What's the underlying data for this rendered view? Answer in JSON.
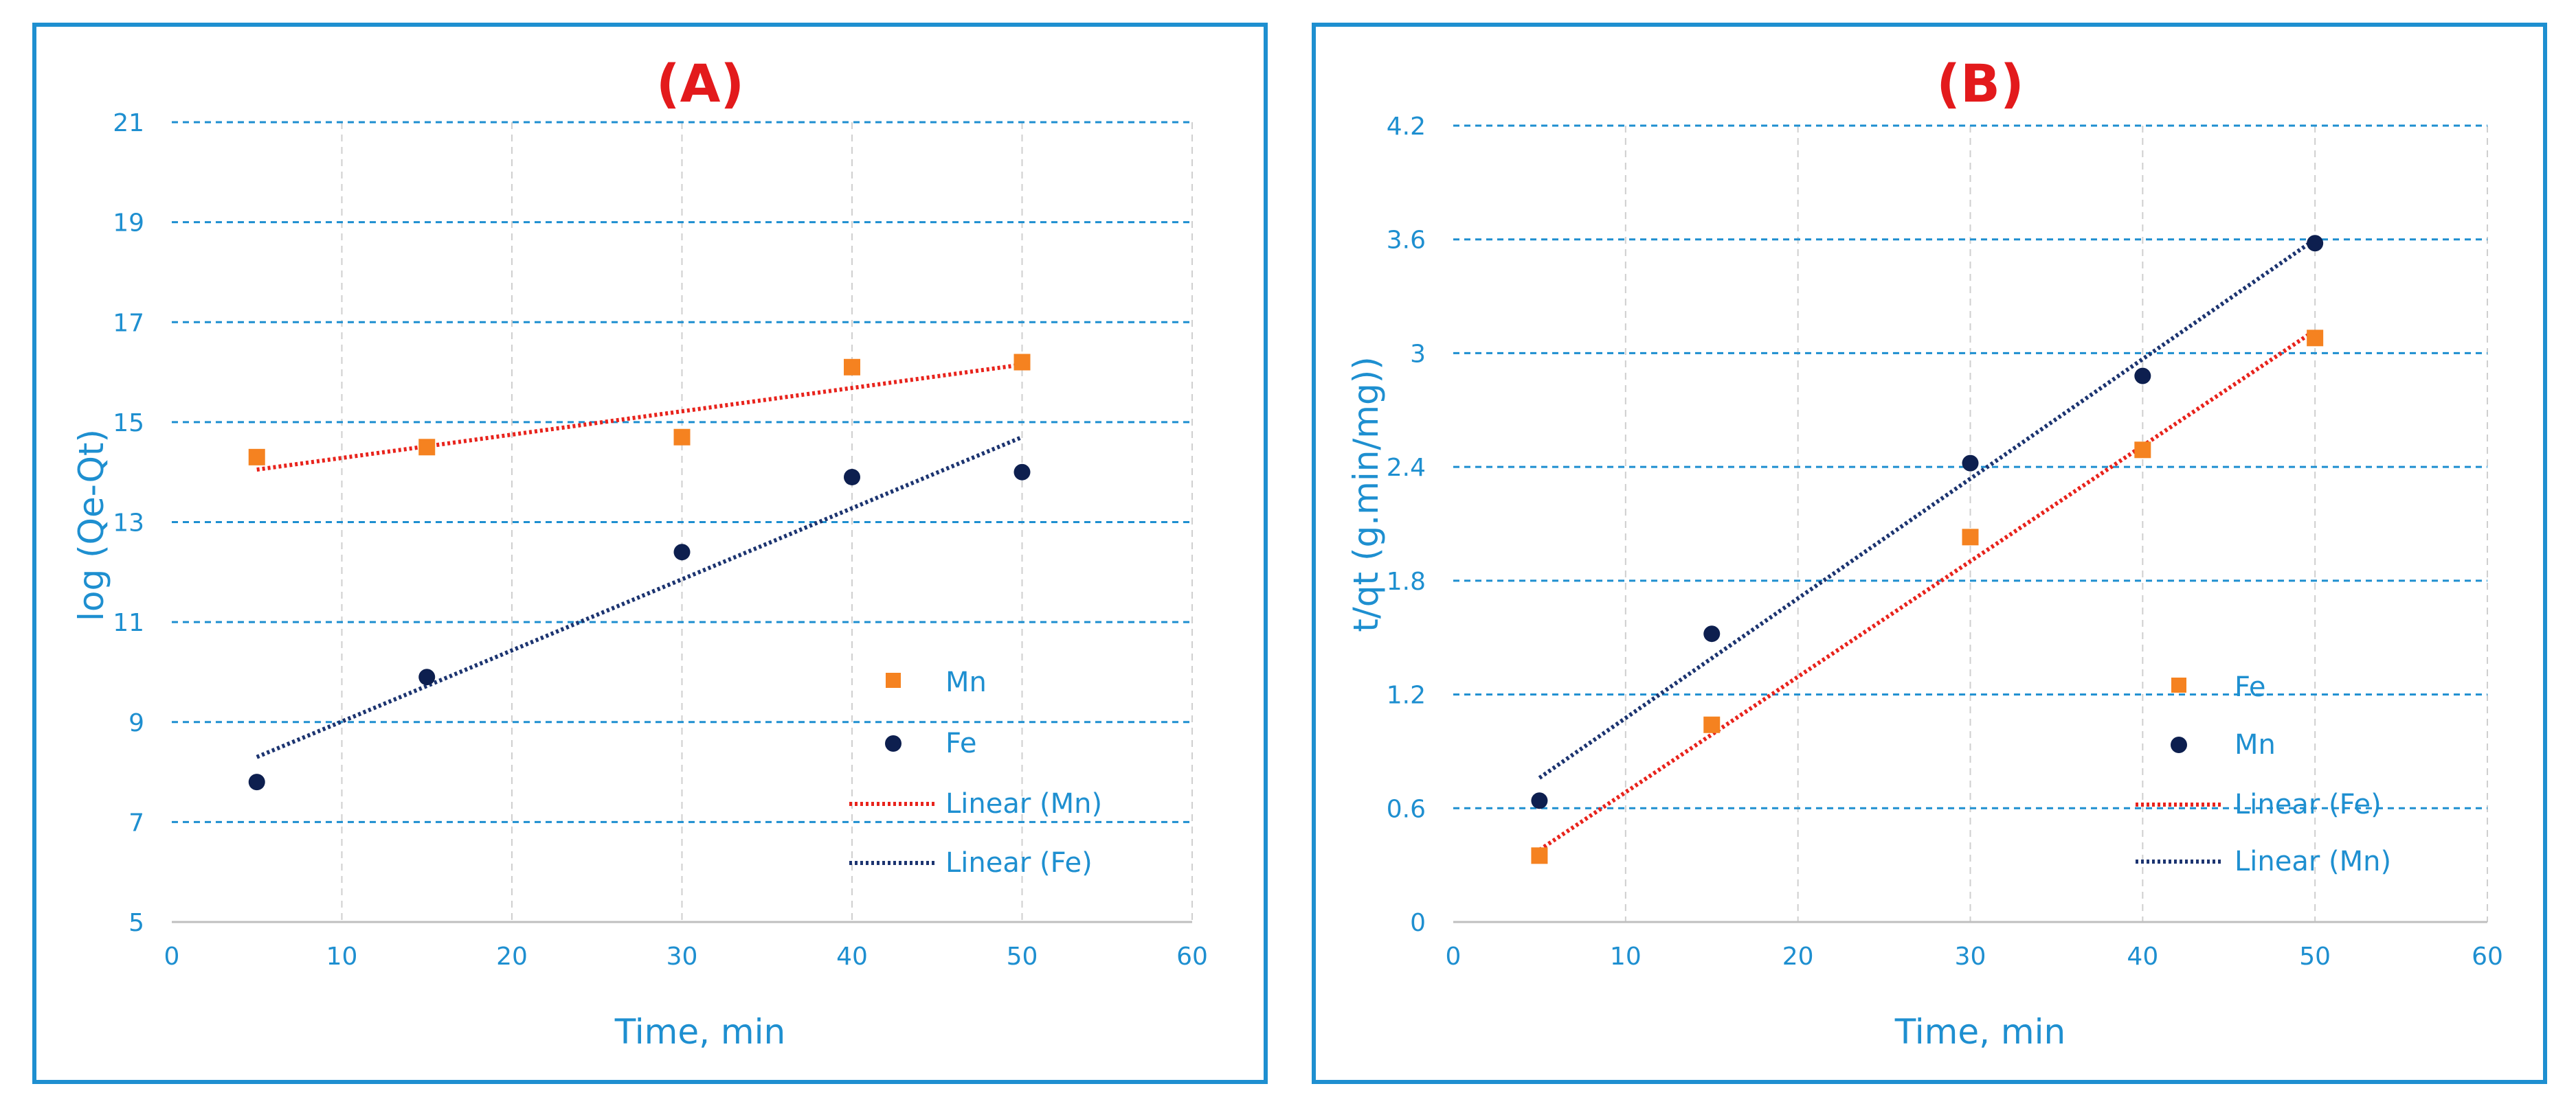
{
  "chart_data": [
    {
      "type": "scatter",
      "title": "(A)",
      "xlabel": "Time, min",
      "ylabel": "log (Qe-Qt)",
      "xlim": [
        0,
        60
      ],
      "ylim": [
        5,
        21
      ],
      "xticks": [
        "0",
        "10",
        "20",
        "30",
        "40",
        "50",
        "60"
      ],
      "yticks": [
        "5",
        "7",
        "9",
        "11",
        "13",
        "15",
        "17",
        "19",
        "21"
      ],
      "series": [
        {
          "name": "Mn",
          "marker": "square",
          "color": "#f58220",
          "x": [
            5,
            15,
            30,
            40,
            50
          ],
          "y": [
            14.3,
            14.5,
            14.7,
            16.1,
            16.2
          ]
        },
        {
          "name": "Fe",
          "marker": "circle",
          "color": "#0d1f4f",
          "x": [
            5,
            15,
            30,
            40,
            50
          ],
          "y": [
            7.8,
            9.9,
            12.4,
            13.9,
            14.0
          ]
        }
      ],
      "trendlines": [
        {
          "name": "Linear (Mn)",
          "color": "#e8231c",
          "x": [
            5,
            50
          ],
          "y": [
            14.05,
            16.15
          ]
        },
        {
          "name": "Linear (Fe)",
          "color": "#1c3470",
          "x": [
            5,
            50
          ],
          "y": [
            8.3,
            14.7
          ]
        }
      ],
      "legend": [
        "Mn",
        "Fe",
        "Linear (Mn)",
        "Linear (Fe)"
      ]
    },
    {
      "type": "scatter",
      "title": "(B)",
      "xlabel": "Time, min",
      "ylabel": "t/qt  (g.min/mg))",
      "xlim": [
        0,
        60
      ],
      "ylim": [
        0,
        4.2
      ],
      "xticks": [
        "0",
        "10",
        "20",
        "30",
        "40",
        "50",
        "60"
      ],
      "yticks": [
        "0",
        "0.6",
        "1.2",
        "1.8",
        "2.4",
        "3",
        "3.6",
        "4.2"
      ],
      "series": [
        {
          "name": "Fe",
          "marker": "square",
          "color": "#f58220",
          "x": [
            5,
            15,
            30,
            40,
            50
          ],
          "y": [
            0.35,
            1.04,
            2.03,
            2.49,
            3.08
          ]
        },
        {
          "name": "Mn",
          "marker": "circle",
          "color": "#0d1f4f",
          "x": [
            5,
            15,
            30,
            40,
            50
          ],
          "y": [
            0.64,
            1.52,
            2.42,
            2.88,
            3.58
          ]
        }
      ],
      "trendlines": [
        {
          "name": "Linear (Fe)",
          "color": "#e8231c",
          "x": [
            5,
            50
          ],
          "y": [
            0.38,
            3.12
          ]
        },
        {
          "name": "Linear (Mn)",
          "color": "#1c3470",
          "x": [
            5,
            50
          ],
          "y": [
            0.76,
            3.6
          ]
        }
      ],
      "legend": [
        "Fe",
        "Mn",
        "Linear (Fe)",
        "Linear (Mn)"
      ]
    }
  ]
}
